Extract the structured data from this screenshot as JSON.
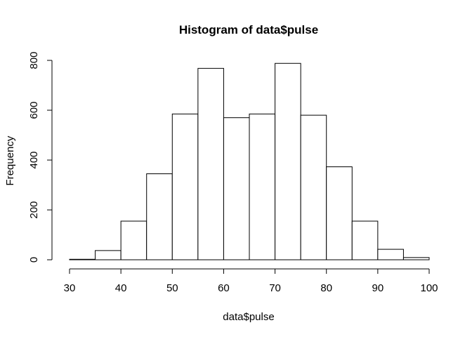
{
  "chart_data": {
    "type": "bar",
    "title": "Histogram of data$pulse",
    "xlabel": "data$pulse",
    "ylabel": "Frequency",
    "bins": [
      {
        "from": 30,
        "to": 35,
        "count": 2
      },
      {
        "from": 35,
        "to": 40,
        "count": 37
      },
      {
        "from": 40,
        "to": 45,
        "count": 155
      },
      {
        "from": 45,
        "to": 50,
        "count": 345
      },
      {
        "from": 50,
        "to": 55,
        "count": 585
      },
      {
        "from": 55,
        "to": 60,
        "count": 768
      },
      {
        "from": 60,
        "to": 65,
        "count": 570
      },
      {
        "from": 65,
        "to": 70,
        "count": 585
      },
      {
        "from": 70,
        "to": 75,
        "count": 788
      },
      {
        "from": 75,
        "to": 80,
        "count": 580
      },
      {
        "from": 80,
        "to": 85,
        "count": 373
      },
      {
        "from": 85,
        "to": 90,
        "count": 155
      },
      {
        "from": 90,
        "to": 95,
        "count": 42
      },
      {
        "from": 95,
        "to": 100,
        "count": 9
      }
    ],
    "xlim": [
      30,
      100
    ],
    "ylim": [
      0,
      800
    ],
    "xticks": [
      30,
      40,
      50,
      60,
      70,
      80,
      90,
      100
    ],
    "yticks": [
      0,
      200,
      400,
      600,
      800
    ],
    "grid": false
  }
}
